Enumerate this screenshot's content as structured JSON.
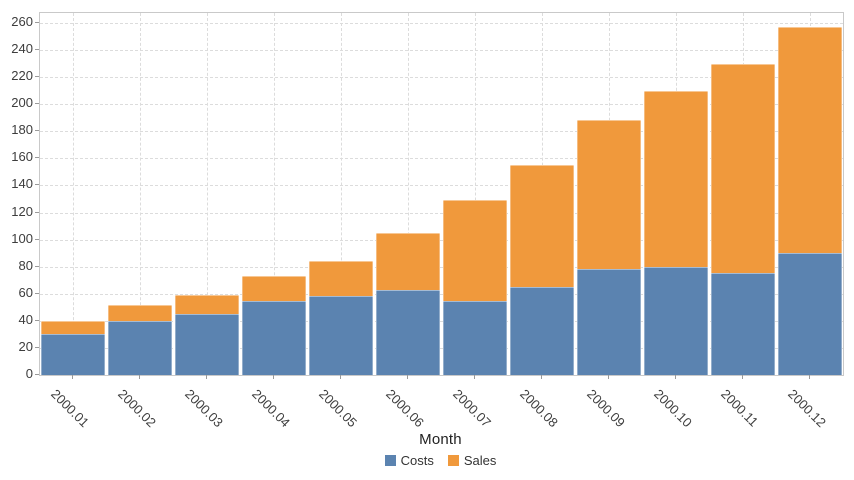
{
  "chart_data": {
    "type": "bar",
    "stacked": true,
    "title": "",
    "xlabel": "Month",
    "ylabel": "",
    "categories": [
      "2000.01",
      "2000.02",
      "2000.03",
      "2000.04",
      "2000.05",
      "2000.06",
      "2000.07",
      "2000.08",
      "2000.09",
      "2000.10",
      "2000.11",
      "2000.12"
    ],
    "series": [
      {
        "name": "Costs",
        "color": "#5b83b0",
        "values": [
          30,
          40,
          45,
          55,
          58,
          63,
          55,
          65,
          78,
          80,
          75,
          90
        ]
      },
      {
        "name": "Sales",
        "color": "#f0993c",
        "values": [
          10,
          12,
          14,
          18,
          26,
          42,
          74,
          90,
          110,
          130,
          155,
          167
        ]
      }
    ],
    "stacked_totals": [
      40,
      52,
      59,
      73,
      84,
      105,
      129,
      155,
      188,
      210,
      230,
      257
    ],
    "y_ticks": [
      0,
      20,
      40,
      60,
      80,
      100,
      120,
      140,
      160,
      180,
      200,
      220,
      240,
      260
    ],
    "ylim": [
      0,
      267
    ],
    "grid": "dashed",
    "legend_position": "bottom"
  }
}
